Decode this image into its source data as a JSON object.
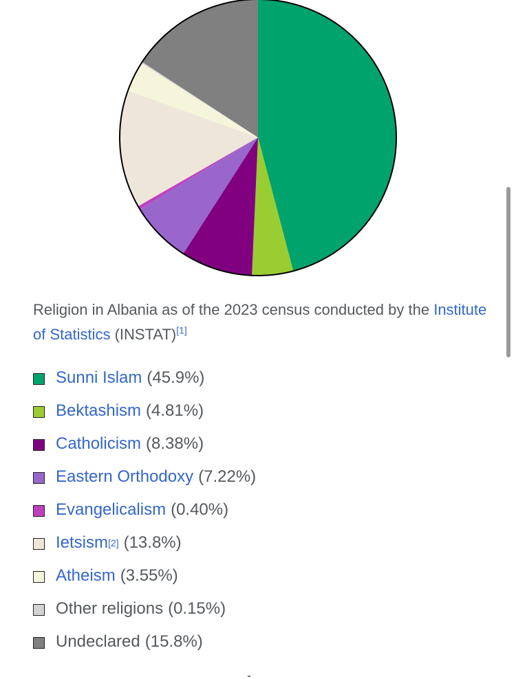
{
  "caption": {
    "text_before": "Religion in Albania as of the 2023 census conducted by the",
    "link": "Institute of Statistics",
    "text_after": "(INSTAT)",
    "ref": "[1]"
  },
  "chart_data": {
    "type": "pie",
    "start": "top",
    "direction": "clockwise",
    "slices": [
      {
        "label": "Sunni Islam",
        "value": 45.9,
        "pct_label": "(45.9%)",
        "color": "#00a36c",
        "link": true
      },
      {
        "label": "Bektashism",
        "value": 4.81,
        "pct_label": "(4.81%)",
        "color": "#9acd32",
        "link": true
      },
      {
        "label": "Catholicism",
        "value": 8.38,
        "pct_label": "(8.38%)",
        "color": "#800080",
        "link": true
      },
      {
        "label": "Eastern Orthodoxy",
        "value": 7.22,
        "pct_label": "(7.22%)",
        "color": "#9966cc",
        "link": true
      },
      {
        "label": "Evangelicalism",
        "value": 0.4,
        "pct_label": "(0.40%)",
        "color": "#bf40bf",
        "link": true
      },
      {
        "label": "Ietsism",
        "value": 13.8,
        "pct_label": "(13.8%)",
        "color": "#efe6da",
        "link": true,
        "ref": "[2]"
      },
      {
        "label": "Atheism",
        "value": 3.55,
        "pct_label": "(3.55%)",
        "color": "#f5f5dc",
        "link": true
      },
      {
        "label": "Other religions",
        "value": 0.15,
        "pct_label": "(0.15%)",
        "color": "#d3d3d3",
        "link": false
      },
      {
        "label": "Undeclared",
        "value": 15.8,
        "pct_label": "(15.8%)",
        "color": "#808080",
        "link": false
      }
    ]
  }
}
